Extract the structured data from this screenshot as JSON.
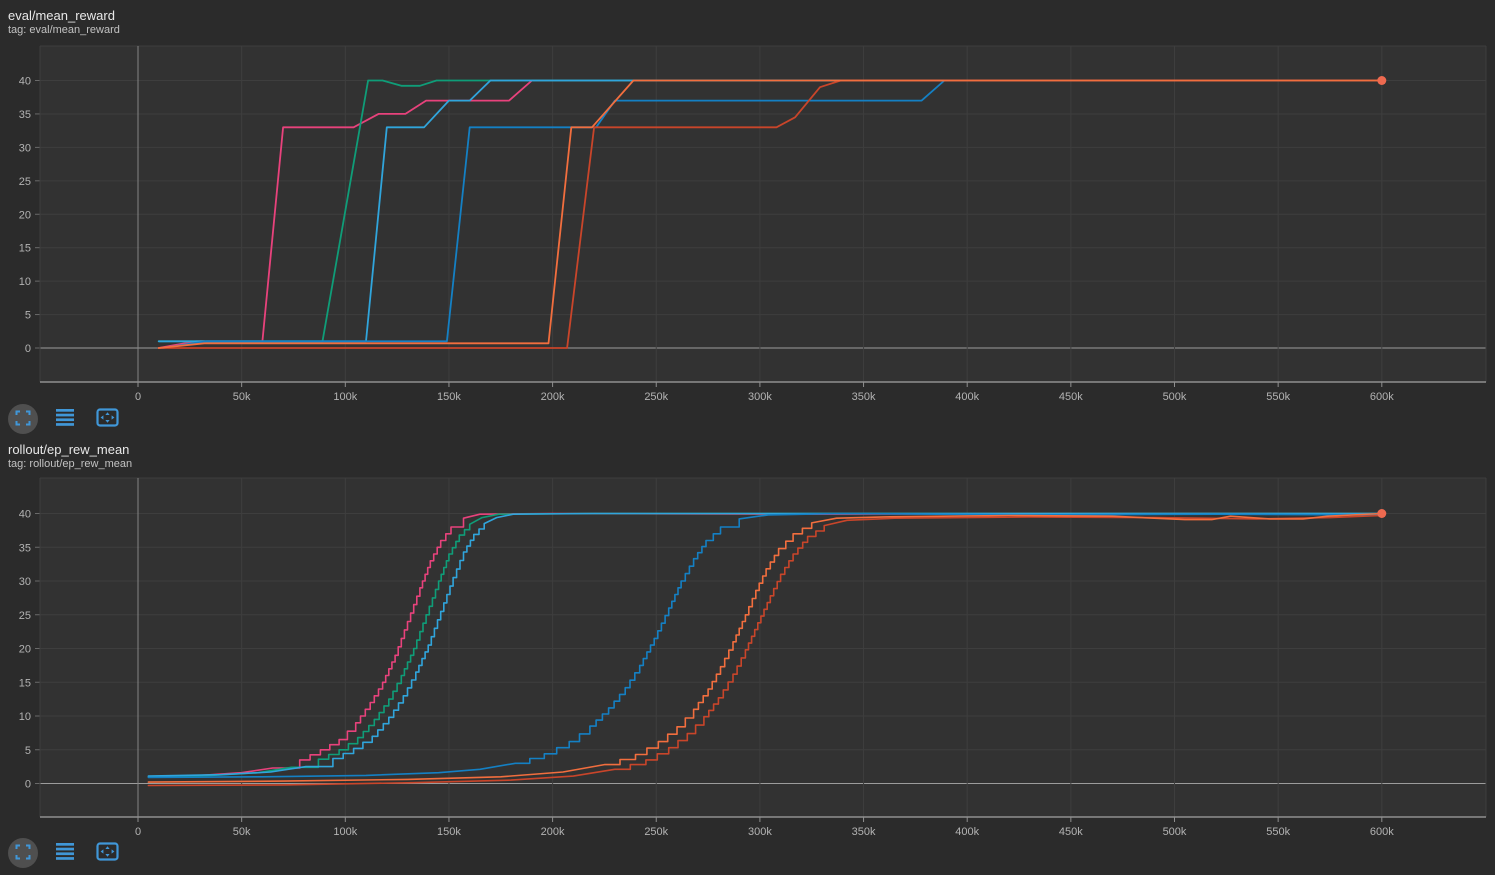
{
  "theme": {
    "page_bg": "#2b2b2b",
    "plot_bg": "#323232",
    "grid_line": "#3e3e3e",
    "zero_line": "#9c9c9c",
    "axis_line": "#8f8f8f",
    "emph_gridline": "#848484",
    "tick_text": "#b3b3b3",
    "icon_blue": "#4097d8"
  },
  "toolbar": {
    "buttons": [
      {
        "name": "fit-to-data",
        "icon": "fit-to-data-icon"
      },
      {
        "name": "data-table",
        "icon": "menu-lines-icon"
      },
      {
        "name": "fullscreen",
        "icon": "fullscreen-icon"
      }
    ]
  },
  "charts": [
    {
      "title": "eval/mean_reward",
      "tag": "tag: eval/mean_reward",
      "chart_data": {
        "type": "line",
        "title": "eval/mean_reward",
        "x_tick_labels": [
          "0",
          "50k",
          "100k",
          "150k",
          "200k",
          "250k",
          "300k",
          "350k",
          "400k",
          "450k",
          "500k",
          "550k",
          "600k"
        ],
        "x_tick_values_k": [
          0,
          50,
          100,
          150,
          200,
          250,
          300,
          350,
          400,
          450,
          500,
          550,
          600
        ],
        "y_ticks": [
          0,
          5,
          10,
          15,
          20,
          25,
          30,
          35,
          40
        ],
        "xlim_k": [
          -47,
          650
        ],
        "ylim": [
          -5.1,
          45.2
        ],
        "grid": true,
        "legend": "none",
        "series": [
          {
            "name": "pink",
            "color": "#e8427c",
            "points_k_v": [
              [
                10,
                0
              ],
              [
                28,
                1
              ],
              [
                60,
                1
              ],
              [
                70,
                33
              ],
              [
                104,
                33
              ],
              [
                116,
                35
              ],
              [
                129,
                35
              ],
              [
                139,
                37
              ],
              [
                179,
                37
              ],
              [
                190,
                40
              ],
              [
                600,
                40
              ]
            ]
          },
          {
            "name": "teal",
            "color": "#0f9d78",
            "points_k_v": [
              [
                10,
                1
              ],
              [
                89,
                1
              ],
              [
                111,
                40
              ],
              [
                118,
                40
              ],
              [
                127,
                39.2
              ],
              [
                136,
                39.2
              ],
              [
                144,
                40
              ],
              [
                600,
                40
              ]
            ]
          },
          {
            "name": "cyan",
            "color": "#30a5dc",
            "points_k_v": [
              [
                10,
                1
              ],
              [
                110,
                1
              ],
              [
                120,
                33
              ],
              [
                138,
                33
              ],
              [
                150,
                37
              ],
              [
                160,
                37
              ],
              [
                170,
                40
              ],
              [
                600,
                40
              ]
            ]
          },
          {
            "name": "blue",
            "color": "#1480c4",
            "points_k_v": [
              [
                12,
                0
              ],
              [
                33,
                1
              ],
              [
                149,
                1
              ],
              [
                160,
                33
              ],
              [
                221,
                33
              ],
              [
                230,
                37
              ],
              [
                378,
                37
              ],
              [
                389,
                40
              ],
              [
                600,
                40
              ]
            ]
          },
          {
            "name": "red",
            "color": "#c9452a",
            "points_k_v": [
              [
                10,
                0
              ],
              [
                207,
                0
              ],
              [
                220,
                33
              ],
              [
                308,
                33
              ],
              [
                317,
                34.5
              ],
              [
                329,
                39
              ],
              [
                331,
                39.2
              ],
              [
                339,
                40
              ],
              [
                600,
                40
              ]
            ]
          },
          {
            "name": "orange",
            "color": "#f26e3e",
            "points_k_v": [
              [
                10,
                0
              ],
              [
                32,
                0.7
              ],
              [
                198,
                0.7
              ],
              [
                209,
                33
              ],
              [
                219,
                33
              ],
              [
                239,
                40
              ],
              [
                600,
                40
              ]
            ]
          }
        ],
        "end_marker": {
          "x_k": 600,
          "y": 40,
          "color": "#ee6a50"
        }
      }
    },
    {
      "title": "rollout/ep_rew_mean",
      "tag": "tag: rollout/ep_rew_mean",
      "chart_data": {
        "type": "line",
        "title": "rollout/ep_rew_mean",
        "x_tick_labels": [
          "0",
          "50k",
          "100k",
          "150k",
          "200k",
          "250k",
          "300k",
          "350k",
          "400k",
          "450k",
          "500k",
          "550k",
          "600k"
        ],
        "x_tick_values_k": [
          0,
          50,
          100,
          150,
          200,
          250,
          300,
          350,
          400,
          450,
          500,
          550,
          600
        ],
        "y_ticks": [
          0,
          5,
          10,
          15,
          20,
          25,
          30,
          35,
          40
        ],
        "xlim_k": [
          -47,
          650
        ],
        "ylim": [
          -5.0,
          45.3
        ],
        "grid": true,
        "legend": "none",
        "series": [
          {
            "name": "pink",
            "color": "#e8427c",
            "points_k_v": [
              [
                5,
                1
              ],
              [
                30,
                1.2
              ],
              [
                50,
                1.6
              ],
              [
                65,
                2.3
              ],
              [
                78,
                3.5
              ],
              [
                88,
                5
              ],
              [
                97,
                6.5
              ],
              [
                105,
                9
              ],
              [
                112,
                12
              ],
              [
                118,
                15
              ],
              [
                124,
                19
              ],
              [
                130,
                24
              ],
              [
                136,
                29
              ],
              [
                141,
                33
              ],
              [
                146,
                36
              ],
              [
                151,
                38
              ],
              [
                157,
                39.3
              ],
              [
                165,
                39.9
              ],
              [
                200,
                40
              ],
              [
                320,
                39.9
              ],
              [
                440,
                40
              ],
              [
                600,
                40
              ]
            ]
          },
          {
            "name": "teal",
            "color": "#0f9d78",
            "points_k_v": [
              [
                5,
                1
              ],
              [
                35,
                1.2
              ],
              [
                58,
                1.6
              ],
              [
                74,
                2.4
              ],
              [
                87,
                3.6
              ],
              [
                97,
                5
              ],
              [
                106,
                6.8
              ],
              [
                114,
                9.5
              ],
              [
                121,
                12.5
              ],
              [
                127,
                16
              ],
              [
                133,
                20
              ],
              [
                139,
                25
              ],
              [
                145,
                30
              ],
              [
                150,
                34
              ],
              [
                155,
                36.8
              ],
              [
                160,
                38.4
              ],
              [
                166,
                39.4
              ],
              [
                174,
                39.9
              ],
              [
                215,
                40
              ],
              [
                600,
                40
              ]
            ]
          },
          {
            "name": "cyan",
            "color": "#30a5dc",
            "points_k_v": [
              [
                5,
                1.1
              ],
              [
                40,
                1.3
              ],
              [
                64,
                1.7
              ],
              [
                81,
                2.5
              ],
              [
                94,
                3.7
              ],
              [
                104,
                5.2
              ],
              [
                113,
                7
              ],
              [
                121,
                9.8
              ],
              [
                128,
                13
              ],
              [
                134,
                16.5
              ],
              [
                140,
                20.5
              ],
              [
                146,
                25.5
              ],
              [
                152,
                30.5
              ],
              [
                157,
                34.3
              ],
              [
                162,
                36.9
              ],
              [
                167,
                38.5
              ],
              [
                173,
                39.4
              ],
              [
                181,
                39.9
              ],
              [
                220,
                40
              ],
              [
                600,
                40
              ]
            ]
          },
          {
            "name": "blue",
            "color": "#1480c4",
            "points_k_v": [
              [
                5,
                0.9
              ],
              [
                60,
                1
              ],
              [
                110,
                1.2
              ],
              [
                145,
                1.6
              ],
              [
                165,
                2.1
              ],
              [
                182,
                3
              ],
              [
                196,
                4.4
              ],
              [
                208,
                6.2
              ],
              [
                218,
                8.5
              ],
              [
                227,
                11.2
              ],
              [
                235,
                14.2
              ],
              [
                242,
                17.5
              ],
              [
                249,
                21.5
              ],
              [
                256,
                26
              ],
              [
                262,
                30
              ],
              [
                268,
                33.3
              ],
              [
                274,
                36
              ],
              [
                281,
                38
              ],
              [
                290,
                39.2
              ],
              [
                304,
                39.8
              ],
              [
                340,
                40
              ],
              [
                430,
                39.8
              ],
              [
                520,
                39.9
              ],
              [
                600,
                39.8
              ]
            ]
          },
          {
            "name": "red",
            "color": "#c9452a",
            "points_k_v": [
              [
                5,
                -0.3
              ],
              [
                70,
                -0.2
              ],
              [
                130,
                0.1
              ],
              [
                180,
                0.5
              ],
              [
                210,
                1.1
              ],
              [
                230,
                2.1
              ],
              [
                245,
                3.5
              ],
              [
                256,
                5.3
              ],
              [
                265,
                7.4
              ],
              [
                273,
                9.9
              ],
              [
                280,
                12.7
              ],
              [
                287,
                16.2
              ],
              [
                293,
                19.8
              ],
              [
                299,
                23.8
              ],
              [
                305,
                27.8
              ],
              [
                310,
                31
              ],
              [
                316,
                34
              ],
              [
                323,
                36.6
              ],
              [
                331,
                38.2
              ],
              [
                342,
                39
              ],
              [
                365,
                39.3
              ],
              [
                430,
                39.5
              ],
              [
                490,
                39.4
              ],
              [
                540,
                39.2
              ],
              [
                575,
                39.4
              ],
              [
                600,
                39.7
              ]
            ]
          },
          {
            "name": "orange",
            "color": "#f26e3e",
            "points_k_v": [
              [
                5,
                0.2
              ],
              [
                70,
                0.35
              ],
              [
                130,
                0.6
              ],
              [
                175,
                1
              ],
              [
                205,
                1.7
              ],
              [
                225,
                2.8
              ],
              [
                240,
                4.3
              ],
              [
                251,
                6.2
              ],
              [
                260,
                8.4
              ],
              [
                268,
                11
              ],
              [
                275,
                14
              ],
              [
                281,
                17.3
              ],
              [
                287,
                21
              ],
              [
                293,
                25
              ],
              [
                298,
                28.6
              ],
              [
                303,
                31.8
              ],
              [
                309,
                34.8
              ],
              [
                316,
                37
              ],
              [
                325,
                38.6
              ],
              [
                337,
                39.3
              ],
              [
                360,
                39.5
              ],
              [
                420,
                39.7
              ],
              [
                470,
                39.6
              ],
              [
                505,
                39.1
              ],
              [
                518,
                39.1
              ],
              [
                527,
                39.6
              ],
              [
                546,
                39.2
              ],
              [
                562,
                39.2
              ],
              [
                574,
                39.6
              ],
              [
                600,
                40
              ]
            ]
          }
        ],
        "end_marker": {
          "x_k": 600,
          "y": 40,
          "color": "#ee6a50"
        }
      }
    }
  ]
}
